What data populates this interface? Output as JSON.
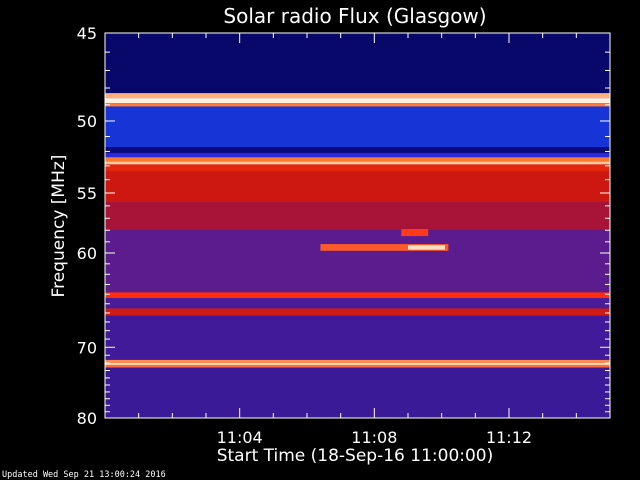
{
  "chart_data": {
    "type": "heatmap",
    "title": "Solar radio Flux (Glasgow)",
    "xlabel": "Start Time (18-Sep-16 11:00:00)",
    "ylabel": "Frequency [MHz]",
    "footer": "Updated Wed Sep 21 13:00:24 2016",
    "x_start": "11:00:00",
    "x_end": "11:15:00",
    "x_ticks": [
      {
        "label": "11:04",
        "minutes": 4
      },
      {
        "label": "11:08",
        "minutes": 8
      },
      {
        "label": "11:12",
        "minutes": 12
      }
    ],
    "x_minor_step_minutes": 1,
    "ylim": [
      45,
      80
    ],
    "y_scale": "reciprocal",
    "y_ticks": [
      45,
      50,
      55,
      60,
      70,
      80
    ],
    "y_minor_step": 1,
    "background_color": "#3b1898",
    "colors": {
      "background": "#000000",
      "text": "#ffffff",
      "axis": "#ffffff",
      "plot_low": "#3b1898",
      "deep_blue": "#0a0a6e",
      "blue": "#1530d8",
      "red": "#d41b0c",
      "bright_red": "#ff2a10",
      "orange": "#ff8a3a",
      "hot": "#ffd8b0"
    },
    "bands": [
      {
        "from": 45.0,
        "to": 48.3,
        "color": "#08086a"
      },
      {
        "from": 48.3,
        "to": 48.6,
        "color": "#ffb07a"
      },
      {
        "from": 48.6,
        "to": 48.9,
        "color": "#fff1dc"
      },
      {
        "from": 48.9,
        "to": 49.1,
        "color": "#ff7a3a"
      },
      {
        "from": 49.1,
        "to": 51.7,
        "color": "#1734d6"
      },
      {
        "from": 51.7,
        "to": 52.1,
        "color": "#0a0a7a"
      },
      {
        "from": 52.1,
        "to": 52.4,
        "color": "#2a2ad8"
      },
      {
        "from": 52.4,
        "to": 52.7,
        "color": "#ff7a30"
      },
      {
        "from": 52.7,
        "to": 52.9,
        "color": "#ffc89a"
      },
      {
        "from": 52.9,
        "to": 53.4,
        "color": "#e3270e"
      },
      {
        "from": 53.4,
        "to": 55.7,
        "color": "#cc1810"
      },
      {
        "from": 55.7,
        "to": 58.0,
        "color": "#a81438"
      },
      {
        "from": 58.0,
        "to": 63.8,
        "color": "#5b1c8e"
      },
      {
        "from": 63.8,
        "to": 64.4,
        "color": "#ff2c10"
      },
      {
        "from": 64.4,
        "to": 65.5,
        "color": "#4a1c98"
      },
      {
        "from": 65.5,
        "to": 66.3,
        "color": "#cf1b14"
      },
      {
        "from": 66.3,
        "to": 71.6,
        "color": "#401a98"
      },
      {
        "from": 71.6,
        "to": 72.0,
        "color": "#ff8a50"
      },
      {
        "from": 72.0,
        "to": 72.3,
        "color": "#ffd2b4"
      },
      {
        "from": 72.3,
        "to": 72.6,
        "color": "#ff6a3a"
      },
      {
        "from": 72.6,
        "to": 80.0,
        "color": "#3a1a96"
      }
    ],
    "bursts": [
      {
        "t_start": 6.4,
        "t_end": 10.2,
        "f_from": 59.2,
        "f_to": 59.8,
        "color": "#ff5a2a"
      },
      {
        "t_start": 8.8,
        "t_end": 9.6,
        "f_from": 57.9,
        "f_to": 58.5,
        "color": "#ff3a1a"
      },
      {
        "t_start": 9.0,
        "t_end": 10.1,
        "f_from": 59.3,
        "f_to": 59.7,
        "color": "#ffe0c0"
      }
    ]
  }
}
